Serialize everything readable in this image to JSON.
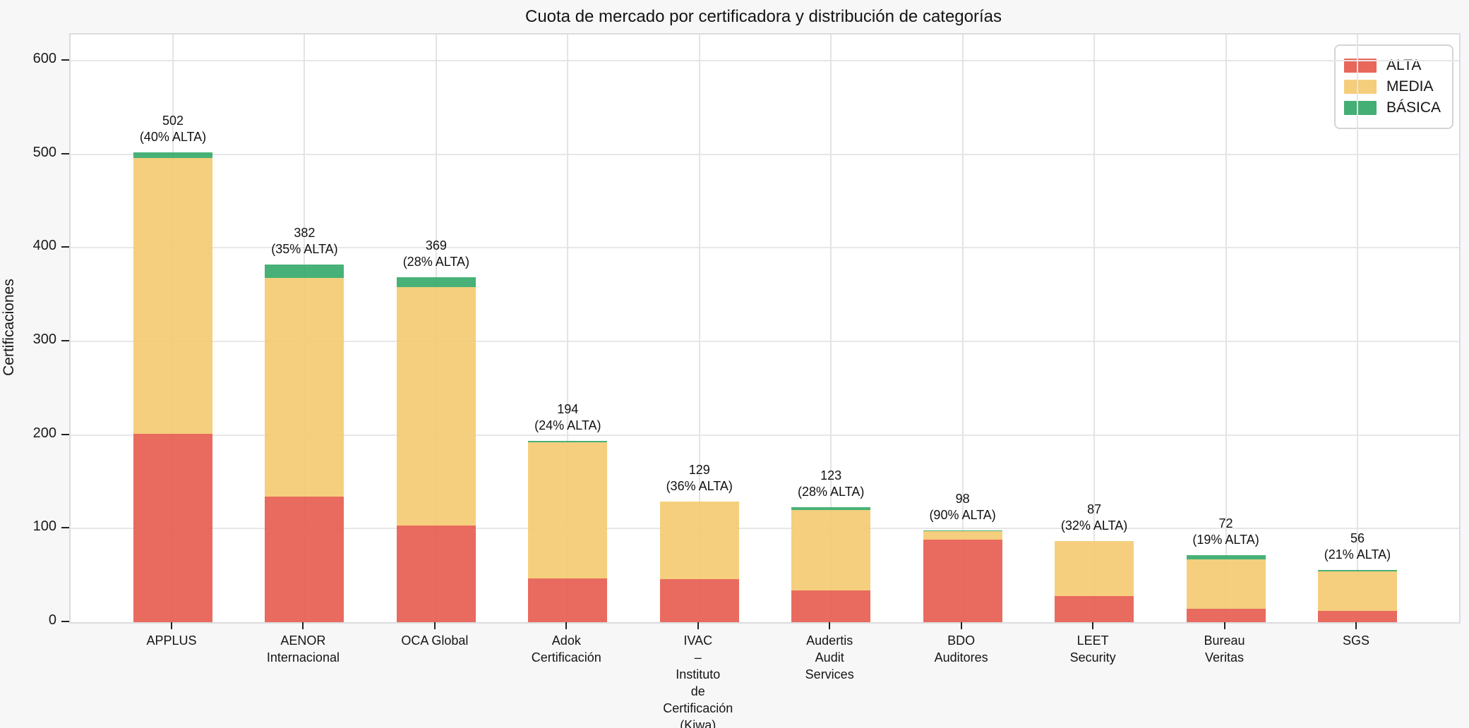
{
  "title": "Cuota de mercado por certificadora y distribución de categorías",
  "chart_data": {
    "type": "bar",
    "stacked": true,
    "title": "Cuota de mercado por certificadora y distribución de categorías",
    "xlabel": "",
    "ylabel": "Certificaciones",
    "ylim": [
      0,
      628
    ],
    "yticks": [
      0,
      100,
      200,
      300,
      400,
      500,
      600
    ],
    "grid": true,
    "legend_position": "upper right",
    "categories": [
      "APPLUS",
      "AENOR Internacional",
      "OCA Global",
      "Adok Certificación",
      "IVAC – Instituto de Certificación (Kiwa)",
      "Audertis Audit Services",
      "BDO Auditores",
      "LEET Security",
      "Bureau Veritas",
      "SGS"
    ],
    "category_label_lines": [
      [
        "APPLUS"
      ],
      [
        "AENOR",
        "Internacional"
      ],
      [
        "OCA Global"
      ],
      [
        "Adok",
        "Certificación"
      ],
      [
        "IVAC",
        "–",
        "Instituto",
        "de",
        "Certificación",
        "(Kiwa)"
      ],
      [
        "Audertis",
        "Audit",
        "Services"
      ],
      [
        "BDO",
        "Auditores"
      ],
      [
        "LEET",
        "Security"
      ],
      [
        "Bureau",
        "Veritas"
      ],
      [
        "SGS"
      ]
    ],
    "series": [
      {
        "name": "ALTA",
        "color": "#e75a4c",
        "values": [
          201,
          134,
          103,
          47,
          46,
          34,
          88,
          28,
          14,
          12
        ]
      },
      {
        "name": "MEDIA",
        "color": "#f4ca70",
        "values": [
          295,
          234,
          255,
          145,
          83,
          86,
          9,
          59,
          53,
          42
        ]
      },
      {
        "name": "BÁSICA",
        "color": "#34a868",
        "values": [
          6,
          14,
          11,
          2,
          0,
          3,
          1,
          0,
          5,
          2
        ]
      }
    ],
    "totals": [
      502,
      382,
      369,
      194,
      129,
      123,
      98,
      87,
      72,
      56
    ],
    "pct_alta": [
      "40%",
      "35%",
      "28%",
      "24%",
      "36%",
      "28%",
      "90%",
      "32%",
      "19%",
      "21%"
    ],
    "annotations": [
      {
        "line1": "502",
        "line2": "(40% ALTA)"
      },
      {
        "line1": "382",
        "line2": "(35% ALTA)"
      },
      {
        "line1": "369",
        "line2": "(28% ALTA)"
      },
      {
        "line1": "194",
        "line2": "(24% ALTA)"
      },
      {
        "line1": "129",
        "line2": "(36% ALTA)"
      },
      {
        "line1": "123",
        "line2": "(28% ALTA)"
      },
      {
        "line1": "98",
        "line2": "(90% ALTA)"
      },
      {
        "line1": "87",
        "line2": "(32% ALTA)"
      },
      {
        "line1": "72",
        "line2": "(19% ALTA)"
      },
      {
        "line1": "56",
        "line2": "(21% ALTA)"
      }
    ],
    "legend": [
      {
        "label": "ALTA",
        "color": "#e75a4c"
      },
      {
        "label": "MEDIA",
        "color": "#f4ca70"
      },
      {
        "label": "BÁSICA",
        "color": "#34a868"
      }
    ]
  },
  "colors": {
    "figure_background": "#f7f7f8",
    "plot_background": "#ffffff",
    "gridline": "#e6e6e9",
    "spine": "#dcdcdf",
    "tick": "#222222",
    "text": "#151515",
    "alta": "#e75a4c",
    "media": "#f4ca70",
    "basica": "#34a868"
  }
}
